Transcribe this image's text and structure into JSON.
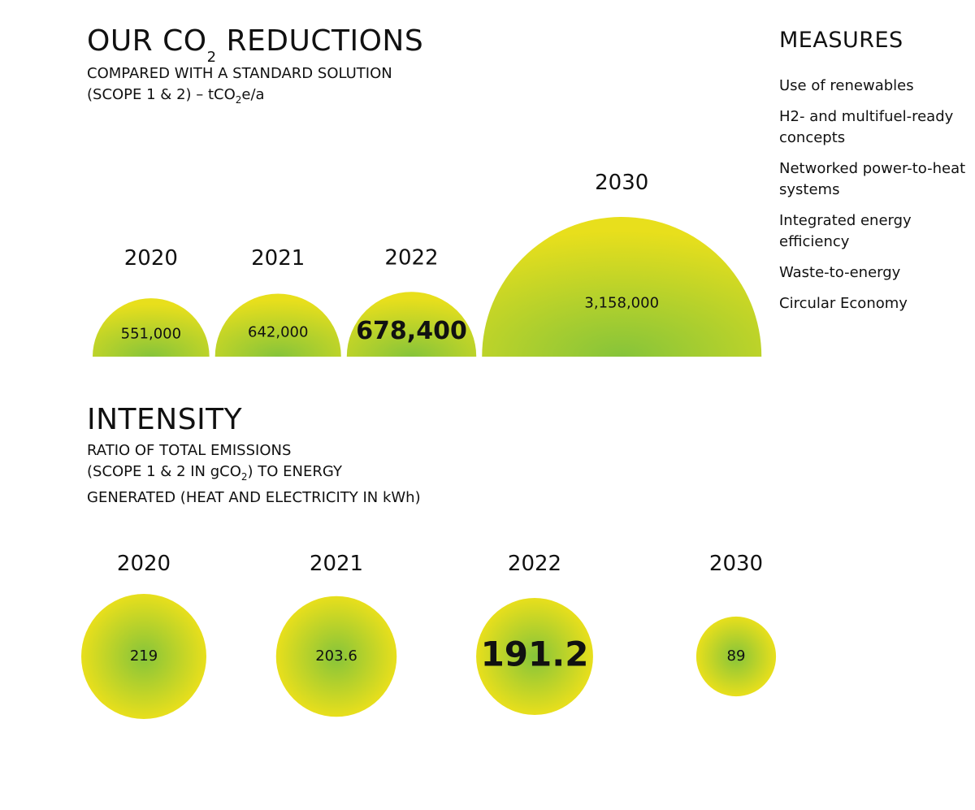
{
  "reductions": {
    "title_a": "OUR CO",
    "title_sub": "2",
    "title_b": " REDUCTIONS",
    "sub_line1": "COMPARED WITH A STANDARD SOLUTION",
    "sub_line2_a": "(SCOPE 1 & 2) – tCO",
    "sub_line2_sub": "2",
    "sub_line2_b": "e/a"
  },
  "intensity": {
    "title": "INTENSITY",
    "sub_line1": "RATIO OF TOTAL EMISSIONS",
    "sub_line2_a": "(SCOPE 1 & 2 IN gCO",
    "sub_line2_sub": "2",
    "sub_line2_b": ") TO ENERGY",
    "sub_line3": "GENERATED (HEAT AND ELECTRICITY IN kWh)"
  },
  "measures": {
    "title": "MEASURES",
    "items": [
      "Use of renewables",
      "H2- and multifuel-ready concepts",
      "Networked power-to-heat systems",
      "Integrated energy efficiency",
      "Waste-to-energy",
      "Circular Economy"
    ]
  },
  "colors": {
    "outer": "#e8df1c",
    "inner": "#86c43a",
    "text": "#111111"
  },
  "chart_data": [
    {
      "type": "semicircle-bubble",
      "categories": [
        "2020",
        "2021",
        "2022",
        "2030"
      ],
      "values": [
        551000,
        642000,
        678400,
        3158000
      ],
      "labels": [
        "551,000",
        "642,000",
        "678,400",
        "3,158,000"
      ],
      "highlight": "2022"
    },
    {
      "type": "bubble",
      "categories": [
        "2020",
        "2021",
        "2022",
        "2030"
      ],
      "values": [
        219,
        203.6,
        191.2,
        89
      ],
      "labels": [
        "219",
        "203.6",
        "191.2",
        "89"
      ],
      "highlight": "2022"
    }
  ]
}
